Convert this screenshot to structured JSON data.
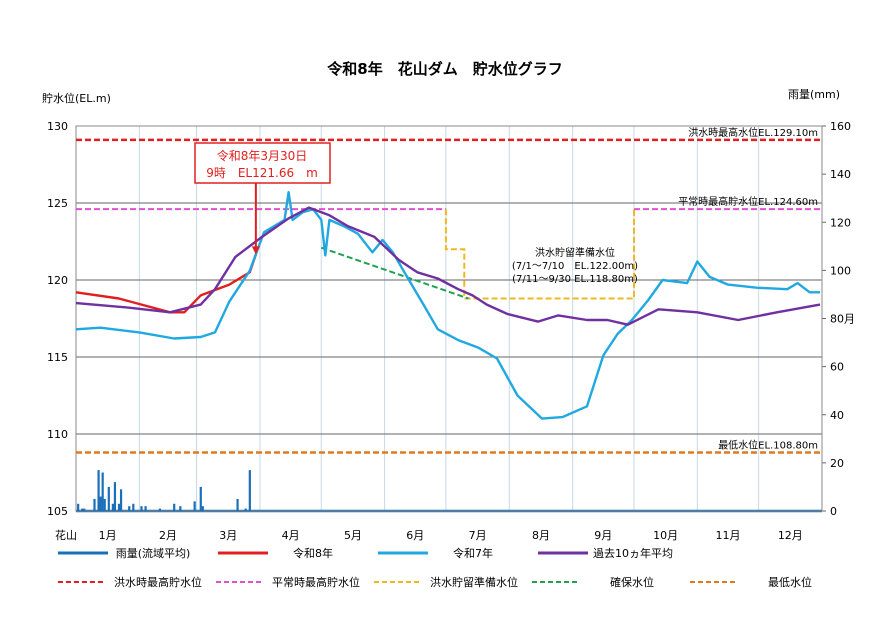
{
  "chart_data": {
    "type": "line",
    "title": "令和8年　花山ダム　貯水位グラフ",
    "ylabel": "貯水位(EL.m)",
    "y2label": "雨量(mm)",
    "ylim": [
      105,
      130
    ],
    "y2lim": [
      0,
      160
    ],
    "yticks": [
      "130",
      "125",
      "120",
      "115",
      "110",
      "105"
    ],
    "y2ticks": [
      "160",
      "140",
      "120",
      "100",
      "80月",
      "60",
      "40",
      "20",
      "0"
    ],
    "x_corner_label": "花山",
    "xticks": [
      "1月",
      "2月",
      "3月",
      "4月",
      "5月",
      "6月",
      "7月",
      "8月",
      "9月",
      "10月",
      "11月",
      "12月"
    ],
    "grid": true,
    "x_unit": "day of year",
    "annotation": {
      "line1": "令和8年3月30日",
      "line2": "9時　EL121.66　m",
      "day": 89,
      "value": 121.66
    },
    "reference_lines": {
      "flood_max": {
        "label": "洪水時最高水位EL.129.10m",
        "value": 129.1,
        "color": "#e02020"
      },
      "normal_max": {
        "label": "平常時最高貯水位EL.124.60m",
        "value": 124.6,
        "color": "#e050d0"
      },
      "min_level": {
        "label": "最低水位EL.108.80m",
        "value": 108.8,
        "color": "#e07a20"
      },
      "flood_prep": {
        "label1": "洪水貯留準備水位",
        "label2": "(7/1～7/10　EL.122.00m)",
        "label3": "(7/11～9/30 EL.118.80m)",
        "color": "#f0b820",
        "points": [
          [
            182,
            124.6
          ],
          [
            182,
            122.0
          ],
          [
            191,
            122.0
          ],
          [
            191,
            118.8
          ],
          [
            274,
            118.8
          ],
          [
            274,
            124.6
          ]
        ]
      },
      "secure": {
        "color": "#20a050",
        "points": [
          [
            121,
            122.1
          ],
          [
            193,
            118.8
          ]
        ]
      }
    },
    "series": [
      {
        "name": "雨量(流域平均)",
        "kind": "bar",
        "axis": "right",
        "color": "#1a6fb8",
        "points": [
          [
            2,
            3
          ],
          [
            4,
            1
          ],
          [
            5,
            1
          ],
          [
            10,
            5
          ],
          [
            12,
            17
          ],
          [
            13,
            6
          ],
          [
            14,
            16
          ],
          [
            15,
            5
          ],
          [
            17,
            10
          ],
          [
            19,
            3
          ],
          [
            20,
            12
          ],
          [
            22,
            3
          ],
          [
            23,
            9
          ],
          [
            27,
            2
          ],
          [
            29,
            3
          ],
          [
            33,
            2
          ],
          [
            35,
            2
          ],
          [
            42,
            1
          ],
          [
            49,
            3
          ],
          [
            52,
            2
          ],
          [
            59,
            4
          ],
          [
            62,
            10
          ],
          [
            63,
            2
          ],
          [
            80,
            5
          ],
          [
            84,
            1
          ],
          [
            86,
            17
          ]
        ]
      },
      {
        "name": "令和8年",
        "color": "#e02020",
        "points": [
          [
            1,
            119.2
          ],
          [
            22,
            118.8
          ],
          [
            47,
            117.9
          ],
          [
            54,
            117.9
          ],
          [
            62,
            119.0
          ],
          [
            76,
            119.7
          ],
          [
            86,
            120.5
          ],
          [
            89,
            121.66
          ]
        ]
      },
      {
        "name": "令和7年",
        "color": "#20a8e0",
        "points": [
          [
            1,
            116.8
          ],
          [
            13,
            116.9
          ],
          [
            32,
            116.6
          ],
          [
            49,
            116.2
          ],
          [
            62,
            116.3
          ],
          [
            69,
            116.6
          ],
          [
            76,
            118.6
          ],
          [
            86,
            120.6
          ],
          [
            93,
            123.1
          ],
          [
            103,
            123.9
          ],
          [
            105,
            125.7
          ],
          [
            107,
            123.9
          ],
          [
            112,
            124.4
          ],
          [
            117,
            124.6
          ],
          [
            121,
            123.9
          ],
          [
            123,
            121.6
          ],
          [
            125,
            123.9
          ],
          [
            132,
            123.5
          ],
          [
            139,
            123.0
          ],
          [
            146,
            121.8
          ],
          [
            151,
            122.6
          ],
          [
            156,
            121.8
          ],
          [
            163,
            120.2
          ],
          [
            171,
            118.4
          ],
          [
            178,
            116.8
          ],
          [
            188,
            116.1
          ],
          [
            198,
            115.6
          ],
          [
            207,
            114.9
          ],
          [
            217,
            112.5
          ],
          [
            229,
            111.0
          ],
          [
            239,
            111.1
          ],
          [
            251,
            111.8
          ],
          [
            259,
            115.1
          ],
          [
            266,
            116.5
          ],
          [
            273,
            117.4
          ],
          [
            281,
            118.7
          ],
          [
            288,
            120.0
          ],
          [
            300,
            119.8
          ],
          [
            305,
            121.2
          ],
          [
            311,
            120.2
          ],
          [
            320,
            119.7
          ],
          [
            334,
            119.5
          ],
          [
            349,
            119.4
          ],
          [
            354,
            119.8
          ],
          [
            360,
            119.2
          ],
          [
            365,
            119.2
          ]
        ]
      },
      {
        "name": "過去10ヵ年平均",
        "color": "#7030a0",
        "points": [
          [
            1,
            118.5
          ],
          [
            27,
            118.2
          ],
          [
            47,
            117.9
          ],
          [
            62,
            118.4
          ],
          [
            69,
            119.4
          ],
          [
            79,
            121.5
          ],
          [
            91,
            122.7
          ],
          [
            105,
            124.0
          ],
          [
            115,
            124.7
          ],
          [
            125,
            124.2
          ],
          [
            134,
            123.5
          ],
          [
            147,
            122.8
          ],
          [
            159,
            121.3
          ],
          [
            168,
            120.5
          ],
          [
            178,
            120.1
          ],
          [
            188,
            119.4
          ],
          [
            195,
            119.0
          ],
          [
            202,
            118.4
          ],
          [
            212,
            117.8
          ],
          [
            227,
            117.3
          ],
          [
            237,
            117.7
          ],
          [
            251,
            117.4
          ],
          [
            261,
            117.4
          ],
          [
            271,
            117.1
          ],
          [
            286,
            118.1
          ],
          [
            305,
            117.9
          ],
          [
            325,
            117.4
          ],
          [
            344,
            117.9
          ],
          [
            365,
            118.4
          ]
        ]
      }
    ],
    "legend": {
      "row1": [
        "雨量(流域平均)",
        "令和8年",
        "令和7年",
        "過去10ヵ年平均"
      ],
      "row2": [
        "洪水時最高貯水位",
        "平常時最高貯水位",
        "洪水貯留準備水位",
        "確保水位",
        "最低水位"
      ]
    }
  }
}
